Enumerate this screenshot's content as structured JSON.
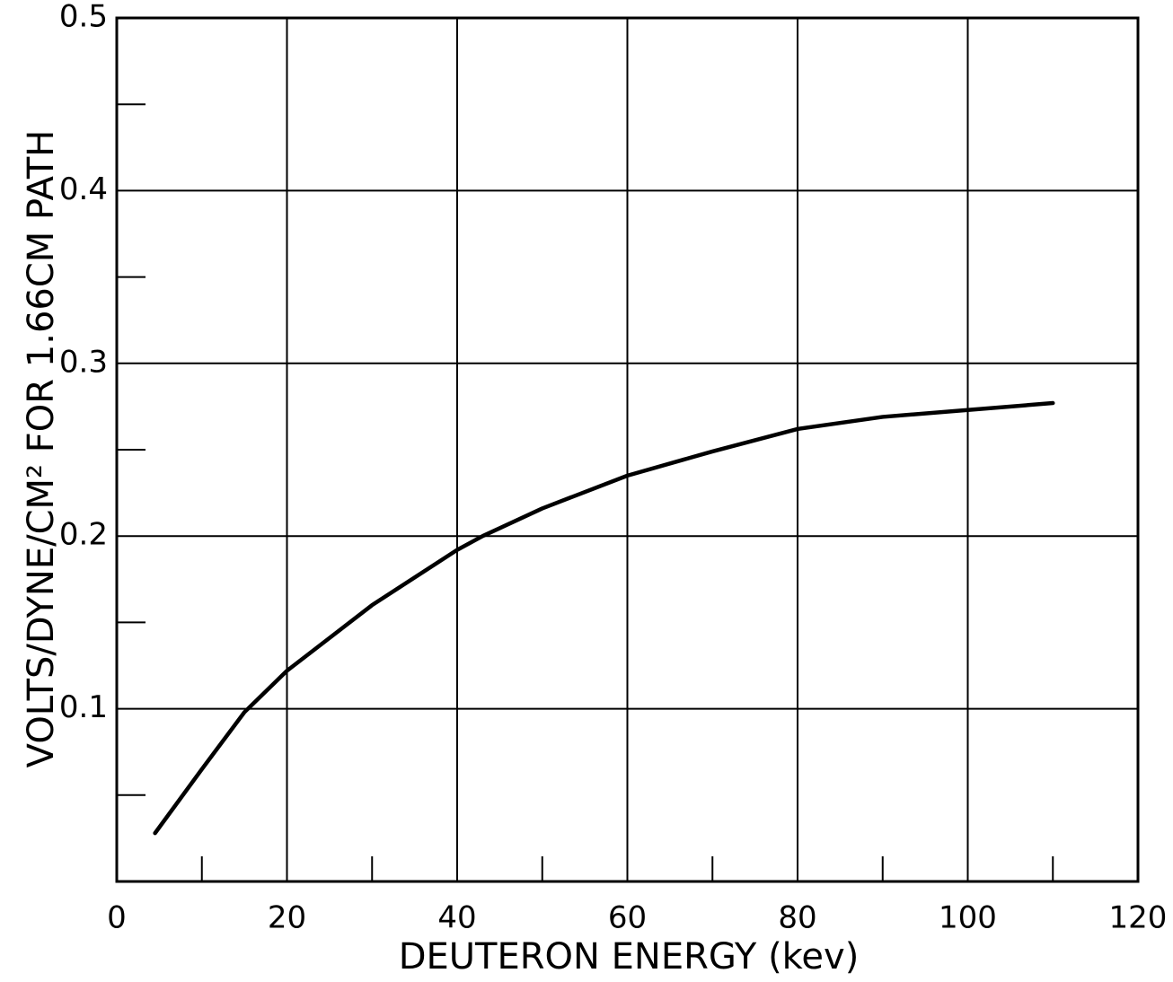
{
  "chart_data": {
    "type": "line",
    "xlabel": "DEUTERON ENERGY (kev)",
    "ylabel": "VOLTS/DYNE/CM² FOR 1.66CM PATH",
    "x": [
      4.5,
      10,
      15,
      20,
      30,
      40,
      43,
      50,
      60,
      70,
      80,
      90,
      100,
      110
    ],
    "series": [
      {
        "color": "#000000",
        "values": [
          0.028,
          0.065,
          0.098,
          0.122,
          0.16,
          0.192,
          0.2,
          0.216,
          0.235,
          0.249,
          0.262,
          0.269,
          0.273,
          0.277
        ]
      }
    ],
    "xlim": [
      0,
      120
    ],
    "xticks": [
      0,
      20,
      40,
      60,
      80,
      100,
      120
    ],
    "xminor_ticks": [
      10,
      30,
      50,
      70,
      90,
      110
    ],
    "ylim": [
      0,
      0.5
    ],
    "yticks": [
      0.1,
      0.2,
      0.3,
      0.4,
      0.5
    ],
    "yminor_ticks": [
      0.05,
      0.15,
      0.25,
      0.35,
      0.45
    ],
    "grid": true
  }
}
